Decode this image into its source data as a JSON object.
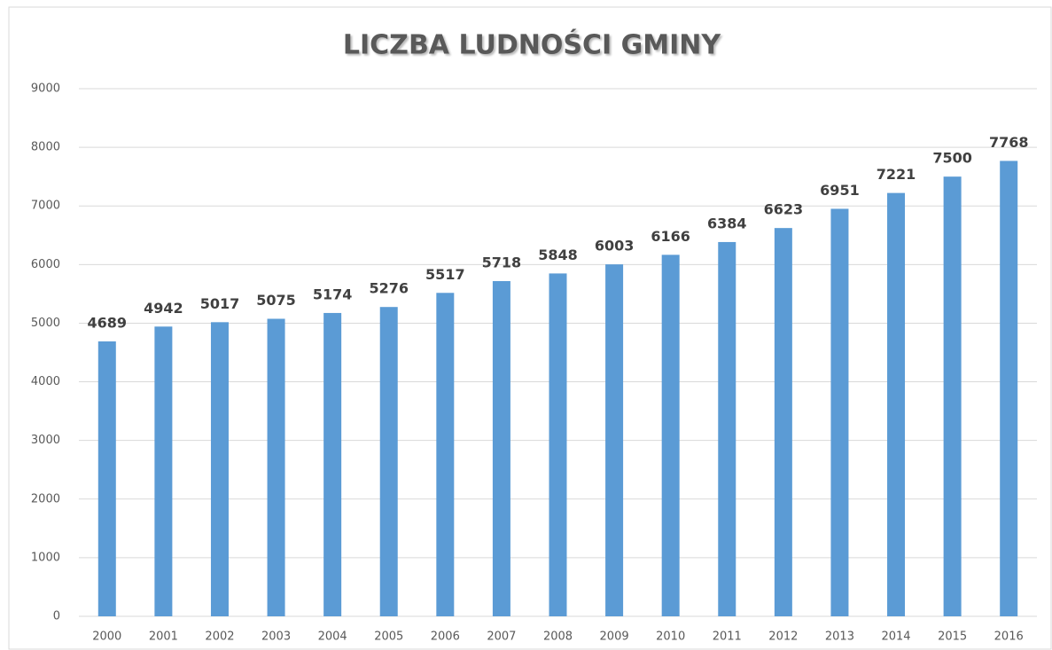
{
  "chart_data": {
    "type": "bar",
    "title": "LICZBA LUDNOŚCI GMINY",
    "categories": [
      "2000",
      "2001",
      "2002",
      "2003",
      "2004",
      "2005",
      "2006",
      "2007",
      "2008",
      "2009",
      "2010",
      "2011",
      "2012",
      "2013",
      "2014",
      "2015",
      "2016"
    ],
    "values": [
      4689,
      4942,
      5017,
      5075,
      5174,
      5276,
      5517,
      5718,
      5848,
      6003,
      6166,
      6384,
      6623,
      6951,
      7221,
      7500,
      7768
    ],
    "color": "#5b9bd5",
    "ylim": [
      0,
      9000
    ],
    "yticks": [
      0,
      1000,
      2000,
      3000,
      4000,
      5000,
      6000,
      7000,
      8000,
      9000
    ],
    "grid": true
  }
}
